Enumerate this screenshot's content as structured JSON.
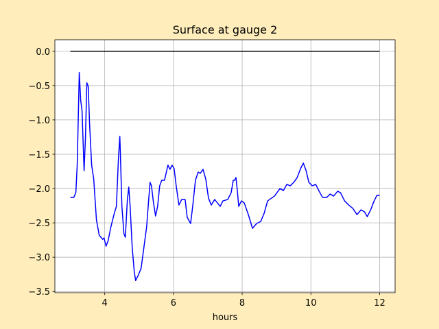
{
  "chart_data": {
    "type": "line",
    "title": "Surface at gauge 2",
    "x_label": "hours",
    "xlim": [
      2.55,
      12.45
    ],
    "ylim": [
      -3.5175,
      0.1675
    ],
    "xticks": [
      4,
      6,
      8,
      10,
      12
    ],
    "yticks": [
      {
        "value": 0,
        "label": "0.0"
      },
      {
        "value": -0.5,
        "label": "−0.5"
      },
      {
        "value": -1,
        "label": "−1.0"
      },
      {
        "value": -1.5,
        "label": "−1.5"
      },
      {
        "value": -2,
        "label": "−2.0"
      },
      {
        "value": -2.5,
        "label": "−2.5"
      },
      {
        "value": -3,
        "label": "−3.0"
      },
      {
        "value": -3.5,
        "label": "−3.5"
      }
    ],
    "grid": true,
    "series": [
      {
        "color": "black",
        "x": [
          3,
          12
        ],
        "values": [
          0,
          0
        ]
      },
      {
        "color": "blue",
        "x": [
          3.0,
          3.1,
          3.16,
          3.2,
          3.26,
          3.3,
          3.34,
          3.4,
          3.44,
          3.48,
          3.52,
          3.56,
          3.62,
          3.68,
          3.76,
          3.84,
          3.94,
          3.98,
          4.04,
          4.1,
          4.18,
          4.28,
          4.34,
          4.4,
          4.44,
          4.46,
          4.5,
          4.56,
          4.6,
          4.66,
          4.7,
          4.74,
          4.8,
          4.86,
          4.9,
          4.98,
          5.06,
          5.14,
          5.22,
          5.28,
          5.32,
          5.36,
          5.42,
          5.48,
          5.54,
          5.6,
          5.66,
          5.74,
          5.84,
          5.9,
          5.96,
          6.02,
          6.08,
          6.16,
          6.24,
          6.34,
          6.4,
          6.5,
          6.56,
          6.64,
          6.72,
          6.78,
          6.86,
          6.94,
          7.02,
          7.1,
          7.2,
          7.28,
          7.36,
          7.44,
          7.58,
          7.68,
          7.74,
          7.78,
          7.82,
          7.86,
          7.9,
          7.98,
          8.06,
          8.18,
          8.3,
          8.42,
          8.54,
          8.64,
          8.74,
          8.94,
          9.1,
          9.2,
          9.3,
          9.4,
          9.5,
          9.6,
          9.7,
          9.78,
          9.86,
          9.94,
          10.04,
          10.14,
          10.24,
          10.34,
          10.46,
          10.56,
          10.66,
          10.78,
          10.86,
          10.98,
          11.1,
          11.22,
          11.34,
          11.46,
          11.56,
          11.64,
          11.74,
          11.84,
          11.92,
          12.0
        ],
        "values": [
          -2.13,
          -2.13,
          -2.06,
          -1.66,
          -0.31,
          -0.71,
          -0.86,
          -1.74,
          -1.26,
          -0.46,
          -0.51,
          -1.06,
          -1.66,
          -1.86,
          -2.46,
          -2.68,
          -2.74,
          -2.72,
          -2.84,
          -2.76,
          -2.56,
          -2.36,
          -2.26,
          -1.56,
          -1.24,
          -1.56,
          -2.26,
          -2.66,
          -2.71,
          -2.16,
          -1.98,
          -2.26,
          -2.86,
          -3.21,
          -3.34,
          -3.26,
          -3.16,
          -2.86,
          -2.56,
          -2.16,
          -1.91,
          -1.96,
          -2.21,
          -2.4,
          -2.26,
          -1.96,
          -1.88,
          -1.88,
          -1.66,
          -1.72,
          -1.66,
          -1.71,
          -1.96,
          -2.24,
          -2.16,
          -2.16,
          -2.42,
          -2.51,
          -2.26,
          -1.88,
          -1.76,
          -1.78,
          -1.72,
          -1.86,
          -2.14,
          -2.24,
          -2.16,
          -2.21,
          -2.26,
          -2.18,
          -2.16,
          -2.06,
          -1.88,
          -1.88,
          -1.84,
          -2.04,
          -2.26,
          -2.18,
          -2.21,
          -2.38,
          -2.58,
          -2.51,
          -2.48,
          -2.36,
          -2.18,
          -2.11,
          -2.0,
          -2.03,
          -1.94,
          -1.96,
          -1.91,
          -1.84,
          -1.71,
          -1.63,
          -1.74,
          -1.91,
          -1.96,
          -1.94,
          -2.04,
          -2.13,
          -2.13,
          -2.08,
          -2.11,
          -2.04,
          -2.06,
          -2.18,
          -2.24,
          -2.29,
          -2.38,
          -2.31,
          -2.34,
          -2.41,
          -2.31,
          -2.18,
          -2.1,
          -2.1
        ]
      }
    ]
  }
}
